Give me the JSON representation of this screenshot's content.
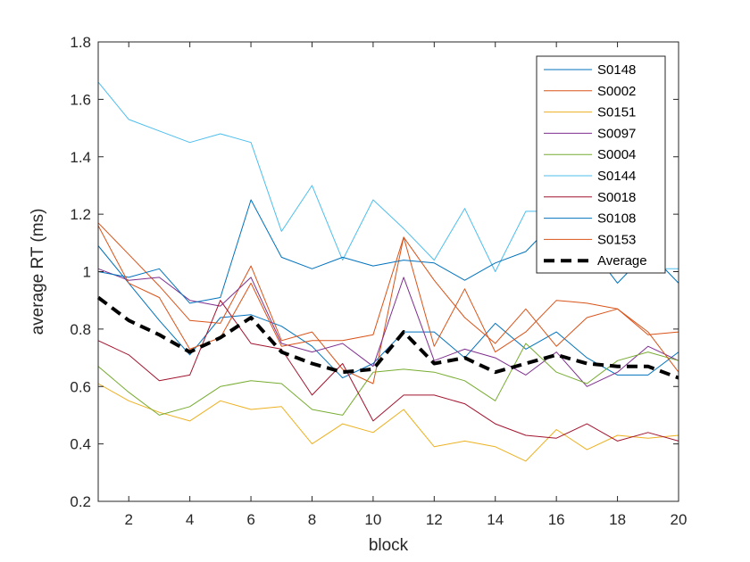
{
  "chart_data": {
    "type": "line",
    "title": "",
    "xlabel": "block",
    "ylabel": "average RT (ms)",
    "xlim": [
      1,
      20
    ],
    "ylim": [
      0.2,
      1.8
    ],
    "xticks": [
      2,
      4,
      6,
      8,
      10,
      12,
      14,
      16,
      18,
      20
    ],
    "xtick_labels": [
      "2",
      "4",
      "6",
      "8",
      "10",
      "12",
      "14",
      "16",
      "18",
      "20"
    ],
    "yticks": [
      0.2,
      0.4,
      0.6,
      0.8,
      1.0,
      1.2,
      1.4,
      1.6,
      1.8
    ],
    "ytick_labels": [
      "0.2",
      "0.4",
      "0.6",
      "0.8",
      "1",
      "1.2",
      "1.4",
      "1.6",
      "1.8"
    ],
    "grid": false,
    "legend_position": "top-right",
    "x": [
      1,
      2,
      3,
      4,
      5,
      6,
      7,
      8,
      9,
      10,
      11,
      12,
      13,
      14,
      15,
      16,
      17,
      18,
      19,
      20
    ],
    "series": [
      {
        "name": "S0148",
        "color": "#0072BD",
        "style": "solid",
        "values": [
          1.09,
          0.96,
          0.83,
          0.71,
          0.84,
          0.85,
          0.81,
          0.74,
          0.63,
          0.68,
          0.79,
          0.79,
          0.7,
          0.82,
          0.73,
          0.79,
          0.7,
          0.64,
          0.64,
          0.72
        ]
      },
      {
        "name": "S0002",
        "color": "#D95319",
        "style": "solid",
        "values": [
          1.17,
          1.06,
          0.95,
          0.83,
          0.82,
          1.02,
          0.76,
          0.79,
          0.66,
          0.61,
          1.12,
          0.74,
          0.94,
          0.72,
          0.79,
          0.9,
          0.89,
          0.87,
          0.78,
          0.79
        ]
      },
      {
        "name": "S0151",
        "color": "#EDB120",
        "style": "solid",
        "values": [
          0.61,
          0.55,
          0.51,
          0.48,
          0.55,
          0.52,
          0.53,
          0.4,
          0.47,
          0.44,
          0.52,
          0.39,
          0.41,
          0.39,
          0.34,
          0.45,
          0.38,
          0.43,
          0.42,
          0.43
        ]
      },
      {
        "name": "S0097",
        "color": "#7E2F8E",
        "style": "solid",
        "values": [
          1.01,
          0.97,
          0.98,
          0.9,
          0.88,
          0.98,
          0.75,
          0.72,
          0.75,
          0.67,
          0.98,
          0.69,
          0.73,
          0.7,
          0.64,
          0.72,
          0.6,
          0.65,
          0.74,
          0.69
        ]
      },
      {
        "name": "S0004",
        "color": "#77AC30",
        "style": "solid",
        "values": [
          0.67,
          0.58,
          0.5,
          0.53,
          0.6,
          0.62,
          0.61,
          0.52,
          0.5,
          0.65,
          0.66,
          0.65,
          0.62,
          0.55,
          0.75,
          0.65,
          0.61,
          0.69,
          0.72,
          0.69
        ]
      },
      {
        "name": "S0144",
        "color": "#4DBEEE",
        "style": "solid",
        "values": [
          1.66,
          1.53,
          1.49,
          1.45,
          1.48,
          1.45,
          1.14,
          1.3,
          1.04,
          1.25,
          1.15,
          1.04,
          1.22,
          1.0,
          1.21,
          1.21,
          1.05,
          1.1,
          1.01,
          1.01
        ]
      },
      {
        "name": "S0018",
        "color": "#A2142F",
        "style": "solid",
        "values": [
          0.76,
          0.71,
          0.62,
          0.64,
          0.9,
          0.75,
          0.73,
          0.57,
          0.68,
          0.48,
          0.57,
          0.57,
          0.54,
          0.47,
          0.43,
          0.42,
          0.47,
          0.41,
          0.44,
          0.41
        ]
      },
      {
        "name": "S0108",
        "color": "#0072BD",
        "style": "solid",
        "values": [
          1.0,
          0.98,
          1.01,
          0.89,
          0.91,
          1.25,
          1.05,
          1.01,
          1.05,
          1.02,
          1.04,
          1.03,
          0.97,
          1.03,
          1.07,
          1.18,
          1.1,
          0.96,
          1.07,
          0.96
        ]
      },
      {
        "name": "S0153",
        "color": "#D95319",
        "style": "solid",
        "values": [
          1.16,
          0.96,
          0.91,
          0.73,
          0.77,
          0.96,
          0.74,
          0.76,
          0.76,
          0.78,
          1.12,
          0.97,
          0.84,
          0.75,
          0.87,
          0.74,
          0.84,
          0.87,
          0.79,
          0.65
        ]
      },
      {
        "name": "Average",
        "color": "#000000",
        "style": "dashed",
        "values": [
          0.91,
          0.83,
          0.78,
          0.72,
          0.77,
          0.84,
          0.72,
          0.68,
          0.65,
          0.66,
          0.79,
          0.68,
          0.7,
          0.65,
          0.68,
          0.71,
          0.68,
          0.67,
          0.67,
          0.63
        ]
      }
    ]
  }
}
